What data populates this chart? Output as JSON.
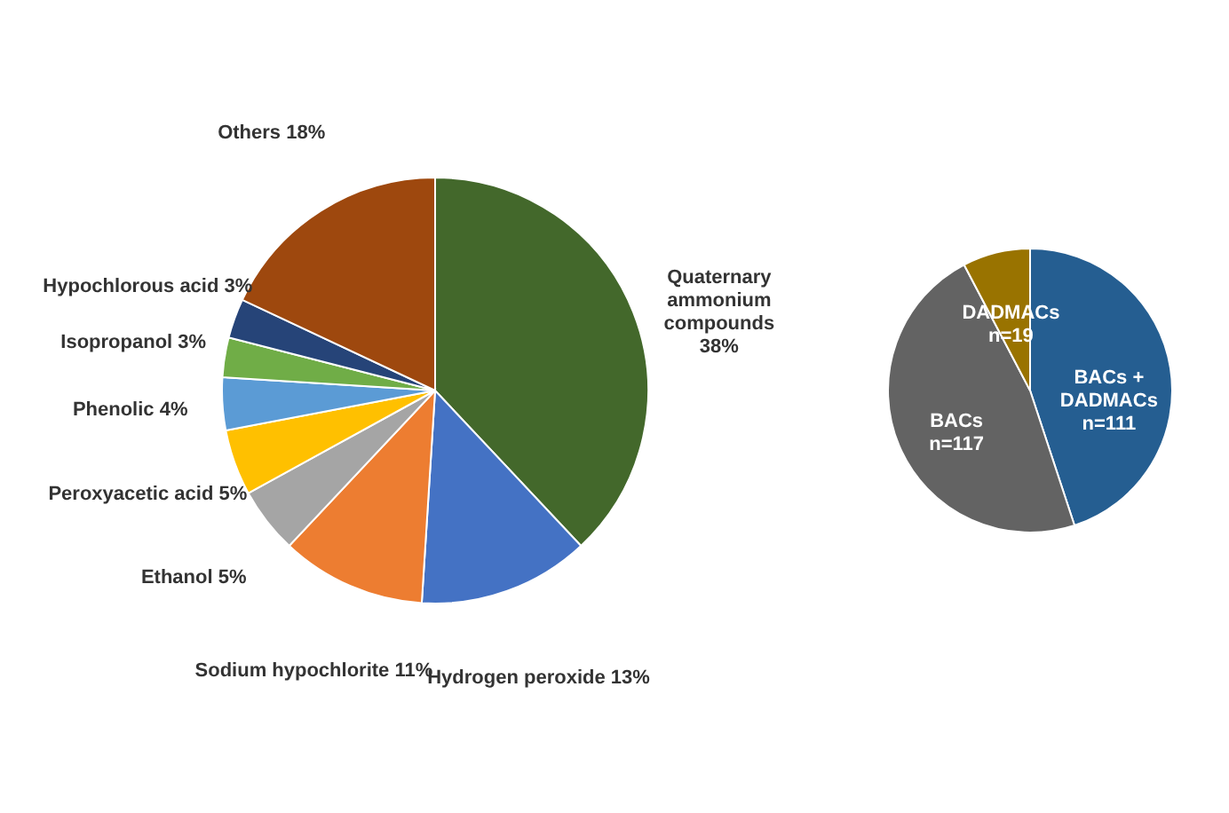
{
  "chart_data": [
    {
      "type": "pie",
      "categories": [
        "Quaternary ammonium compounds",
        "Hydrogen peroxide",
        "Sodium hypochlorite",
        "Ethanol",
        "Peroxyacetic acid",
        "Phenolic",
        "Isopropanol",
        "Hypochlorous acid",
        "Others"
      ],
      "values": [
        38,
        13,
        11,
        5,
        5,
        4,
        3,
        3,
        18
      ],
      "value_labels": [
        "38%",
        "13%",
        "11%",
        "5%",
        "5%",
        "4%",
        "3%",
        "3%",
        "18%"
      ],
      "colors": [
        "#43682b",
        "#4472c4",
        "#ed7d31",
        "#a5a5a5",
        "#ffc000",
        "#5b9bd5",
        "#70ad47",
        "#264478",
        "#9e480e"
      ],
      "legend": false
    },
    {
      "type": "pie",
      "categories": [
        "BACs + DADMACs",
        "BACs",
        "DADMACs"
      ],
      "values": [
        111,
        117,
        19
      ],
      "value_labels": [
        "n=111",
        "n=117",
        "n=19"
      ],
      "colors": [
        "#255e91",
        "#636363",
        "#997300"
      ],
      "legend": false
    }
  ]
}
